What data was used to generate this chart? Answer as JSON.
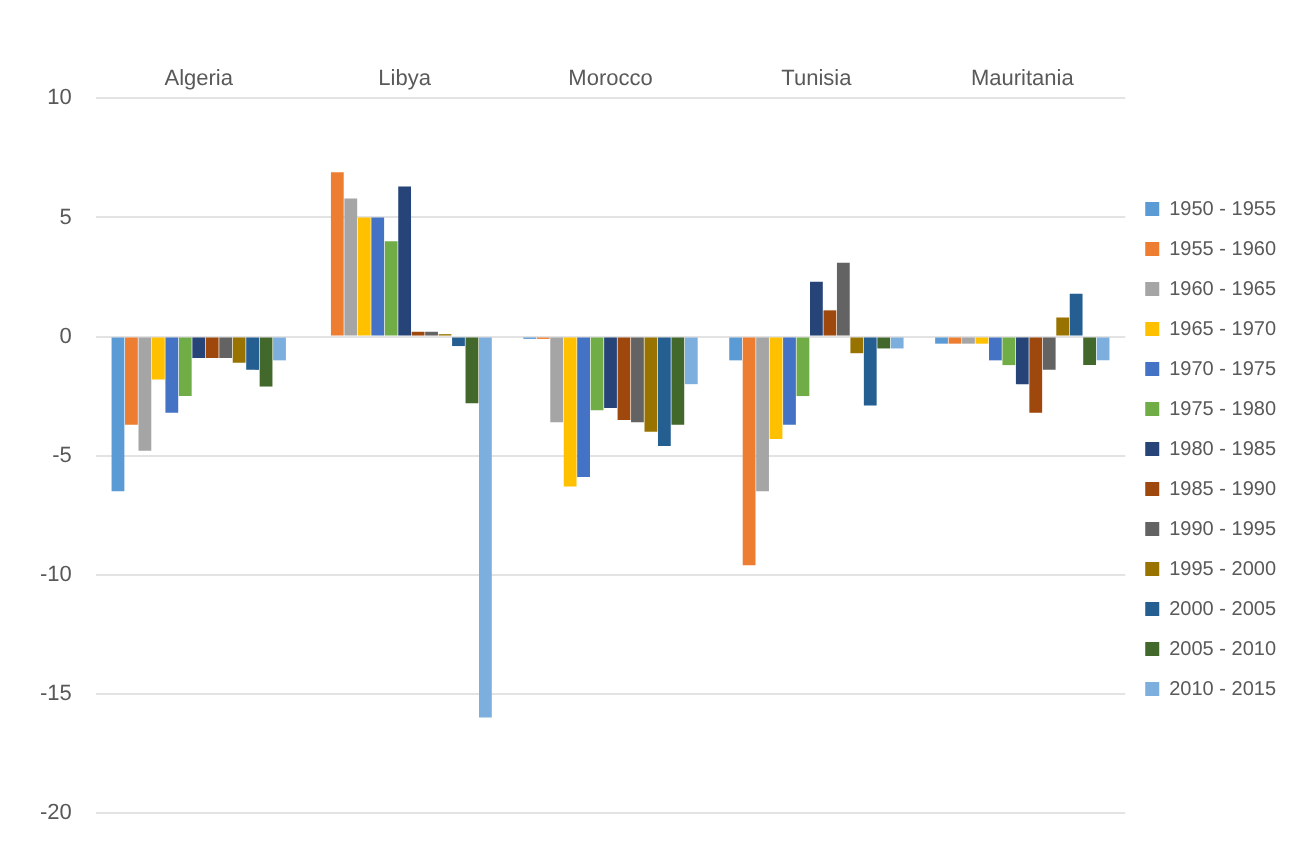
{
  "chart_data": {
    "type": "bar",
    "categories": [
      "Algeria",
      "Libya",
      "Morocco",
      "Tunisia",
      "Mauritania"
    ],
    "series": [
      {
        "name": "1950 - 1955",
        "color": "#5b9bd5",
        "values": [
          -6.5,
          0,
          -0.1,
          -1.0,
          -0.3
        ]
      },
      {
        "name": "1955 - 1960",
        "color": "#ed7d31",
        "values": [
          -3.7,
          6.9,
          -0.1,
          -9.6,
          -0.3
        ]
      },
      {
        "name": "1960 - 1965",
        "color": "#a5a5a5",
        "values": [
          -4.8,
          5.8,
          -3.6,
          -6.5,
          -0.3
        ]
      },
      {
        "name": "1965 - 1970",
        "color": "#ffc000",
        "values": [
          -1.8,
          5.0,
          -6.3,
          -4.3,
          -0.3
        ]
      },
      {
        "name": "1970 - 1975",
        "color": "#4472c4",
        "values": [
          -3.2,
          5.0,
          -5.9,
          -3.7,
          -1.0
        ]
      },
      {
        "name": "1975 - 1980",
        "color": "#70ad47",
        "values": [
          -2.5,
          4.0,
          -3.1,
          -2.5,
          -1.2
        ]
      },
      {
        "name": "1980 - 1985",
        "color": "#264478",
        "values": [
          -0.9,
          6.3,
          -3.0,
          2.3,
          -2.0
        ]
      },
      {
        "name": "1985 - 1990",
        "color": "#9e480e",
        "values": [
          -0.9,
          0.2,
          -3.5,
          1.1,
          -3.2
        ]
      },
      {
        "name": "1990 - 1995",
        "color": "#636363",
        "values": [
          -0.9,
          0.2,
          -3.6,
          3.1,
          -1.4
        ]
      },
      {
        "name": "1995 - 2000",
        "color": "#997300",
        "values": [
          -1.1,
          0.1,
          -4.0,
          -0.7,
          0.8
        ]
      },
      {
        "name": "2000 - 2005",
        "color": "#255e91",
        "values": [
          -1.4,
          -0.4,
          -4.6,
          -2.9,
          1.8
        ]
      },
      {
        "name": "2005 - 2010",
        "color": "#43682b",
        "values": [
          -2.1,
          -2.8,
          -3.7,
          -0.5,
          -1.2
        ]
      },
      {
        "name": "2010 - 2015",
        "color": "#7cafdd",
        "values": [
          -1.0,
          -16.0,
          -2.0,
          -0.5,
          -1.0
        ]
      }
    ],
    "ylim": [
      -20,
      10
    ],
    "yticks": [
      -20,
      -15,
      -10,
      -5,
      0,
      5,
      10
    ],
    "grid": "y",
    "legend": "right"
  }
}
